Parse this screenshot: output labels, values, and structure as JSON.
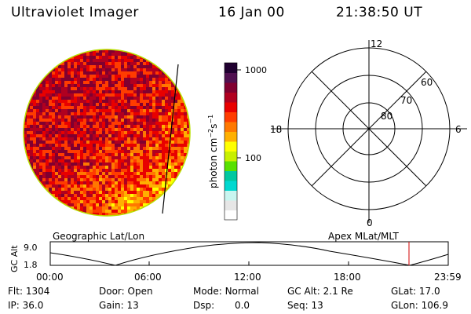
{
  "header": {
    "title": "Ultraviolet Imager",
    "date": "16 Jan 00",
    "time": "21:38:50 UT"
  },
  "image_panel": {
    "palette": [
      "#ffffff",
      "#e6e6e6",
      "#c8f5f0",
      "#00d8d0",
      "#00c8a0",
      "#58e000",
      "#c8f000",
      "#ffff00",
      "#ffb000",
      "#ff7800",
      "#ff3c00",
      "#e80000",
      "#b00020",
      "#800030",
      "#501050",
      "#200030"
    ]
  },
  "colorbar": {
    "label_main": "photon cm",
    "label_sup1": "−2",
    "label_mid": "s",
    "label_sup2": "−1",
    "ticks": [
      "1000",
      "100"
    ]
  },
  "polar_grid": {
    "mlat_labels": [
      "60",
      "70",
      "80"
    ],
    "mlt_labels": {
      "top": "12",
      "left": "18",
      "right": "6",
      "bottom": "0"
    }
  },
  "footer_labels": {
    "left": "Geographic Lat/Lon",
    "right": "Apex MLat/MLT"
  },
  "altitude_plot": {
    "ylabel": "GC Alt",
    "yticks": [
      "9.0",
      "1.8"
    ],
    "xticks": [
      "00:00",
      "06:00",
      "12:00",
      "18:00",
      "23:59"
    ]
  },
  "info": {
    "row1": [
      {
        "label": "Flt:",
        "value": "1304"
      },
      {
        "label": "Door:",
        "value": "Open"
      },
      {
        "label": "Mode:",
        "value": "Normal"
      },
      {
        "label": "GC Alt:",
        "value": "2.1 Re"
      },
      {
        "label": "GLat:",
        "value": "17.0"
      }
    ],
    "row2": [
      {
        "label": "IP:",
        "value": "36.0"
      },
      {
        "label": "Gain:",
        "value": "13"
      },
      {
        "label": "Dsp:",
        "value": "0.0"
      },
      {
        "label": "Seq:",
        "value": "13"
      },
      {
        "label": "GLon:",
        "value": "106.9"
      }
    ]
  }
}
